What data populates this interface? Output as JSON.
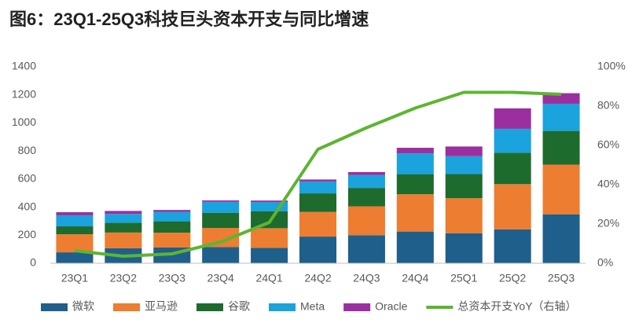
{
  "chart_data": {
    "type": "bar",
    "title": "图6：23Q1-25Q3科技巨头资本开支与同比增速",
    "categories": [
      "23Q1",
      "23Q2",
      "23Q3",
      "23Q4",
      "24Q1",
      "24Q2",
      "24Q3",
      "24Q4",
      "25Q1",
      "25Q2",
      "25Q3"
    ],
    "series": [
      {
        "name": "微软",
        "color": "#1f5f8b",
        "values": [
          78,
          107,
          112,
          115,
          110,
          190,
          200,
          226,
          214,
          242,
          349
        ]
      },
      {
        "name": "亚马逊",
        "color": "#ed7d31",
        "values": [
          129,
          112,
          106,
          137,
          140,
          176,
          206,
          266,
          250,
          322,
          354
        ]
      },
      {
        "name": "谷歌",
        "color": "#1e6b2e",
        "values": [
          56,
          69,
          81,
          108,
          120,
          132,
          131,
          143,
          172,
          224,
          240
        ]
      },
      {
        "name": "Meta",
        "color": "#1aa3dc",
        "values": [
          79,
          64,
          68,
          78,
          67,
          85,
          92,
          148,
          127,
          170,
          194
        ]
      },
      {
        "name": "Oracle",
        "color": "#9b2f9f",
        "values": [
          22,
          21,
          13,
          10,
          10,
          14,
          21,
          40,
          69,
          146,
          75
        ]
      },
      {
        "name": "总资本开支YoY（右轴）",
        "color": "#5cb531",
        "type": "line",
        "axis": "y2",
        "values": [
          6.4,
          3.6,
          4.8,
          10.8,
          20.8,
          58,
          69,
          79,
          87,
          87,
          86
        ]
      }
    ],
    "stacked": true,
    "ylim": [
      0,
      1400
    ],
    "yticks": [
      0,
      200,
      400,
      600,
      800,
      1000,
      1200,
      1400
    ],
    "y2lim": [
      0,
      100
    ],
    "y2ticks": [
      {
        "value": 0,
        "label": "0%"
      },
      {
        "value": 20,
        "label": "20%"
      },
      {
        "value": 40,
        "label": "40%"
      },
      {
        "value": 60,
        "label": "60%"
      },
      {
        "value": 80,
        "label": "80%"
      },
      {
        "value": 100,
        "label": "100%"
      }
    ],
    "grid": false
  }
}
